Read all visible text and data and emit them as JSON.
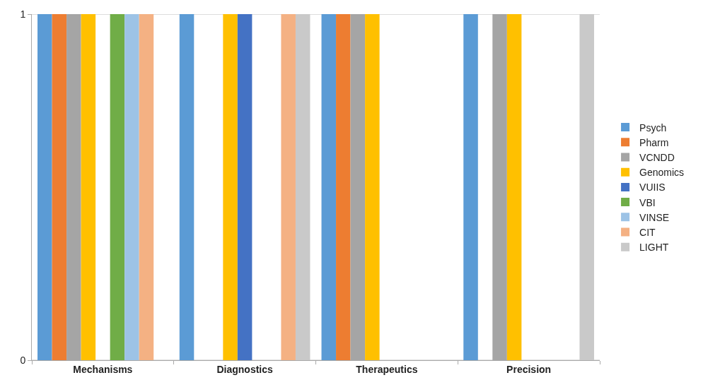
{
  "chart_data": {
    "type": "bar",
    "categories": [
      "Mechanisms",
      "Diagnostics",
      "Therapeutics",
      "Precision"
    ],
    "series": [
      {
        "name": "Psych",
        "color": "#5b9bd5",
        "values": [
          1,
          1,
          1,
          1
        ]
      },
      {
        "name": "Pharm",
        "color": "#ed7d31",
        "values": [
          1,
          0,
          1,
          0
        ]
      },
      {
        "name": "VCNDD",
        "color": "#a5a5a5",
        "values": [
          1,
          0,
          1,
          1
        ]
      },
      {
        "name": "Genomics",
        "color": "#ffc000",
        "values": [
          1,
          1,
          1,
          1
        ]
      },
      {
        "name": "VUIIS",
        "color": "#4472c4",
        "values": [
          0,
          1,
          0,
          0
        ]
      },
      {
        "name": "VBI",
        "color": "#70ad47",
        "values": [
          1,
          0,
          0,
          0
        ]
      },
      {
        "name": "VINSE",
        "color": "#9dc3e6",
        "values": [
          1,
          0,
          0,
          0
        ]
      },
      {
        "name": "CIT",
        "color": "#f4b183",
        "values": [
          1,
          1,
          0,
          0
        ]
      },
      {
        "name": "LIGHT",
        "color": "#c9c9c9",
        "values": [
          0,
          1,
          0,
          1
        ]
      }
    ],
    "ylim": [
      0,
      1
    ],
    "yticks": [
      0,
      1
    ],
    "grid": "y",
    "legend": "right"
  }
}
